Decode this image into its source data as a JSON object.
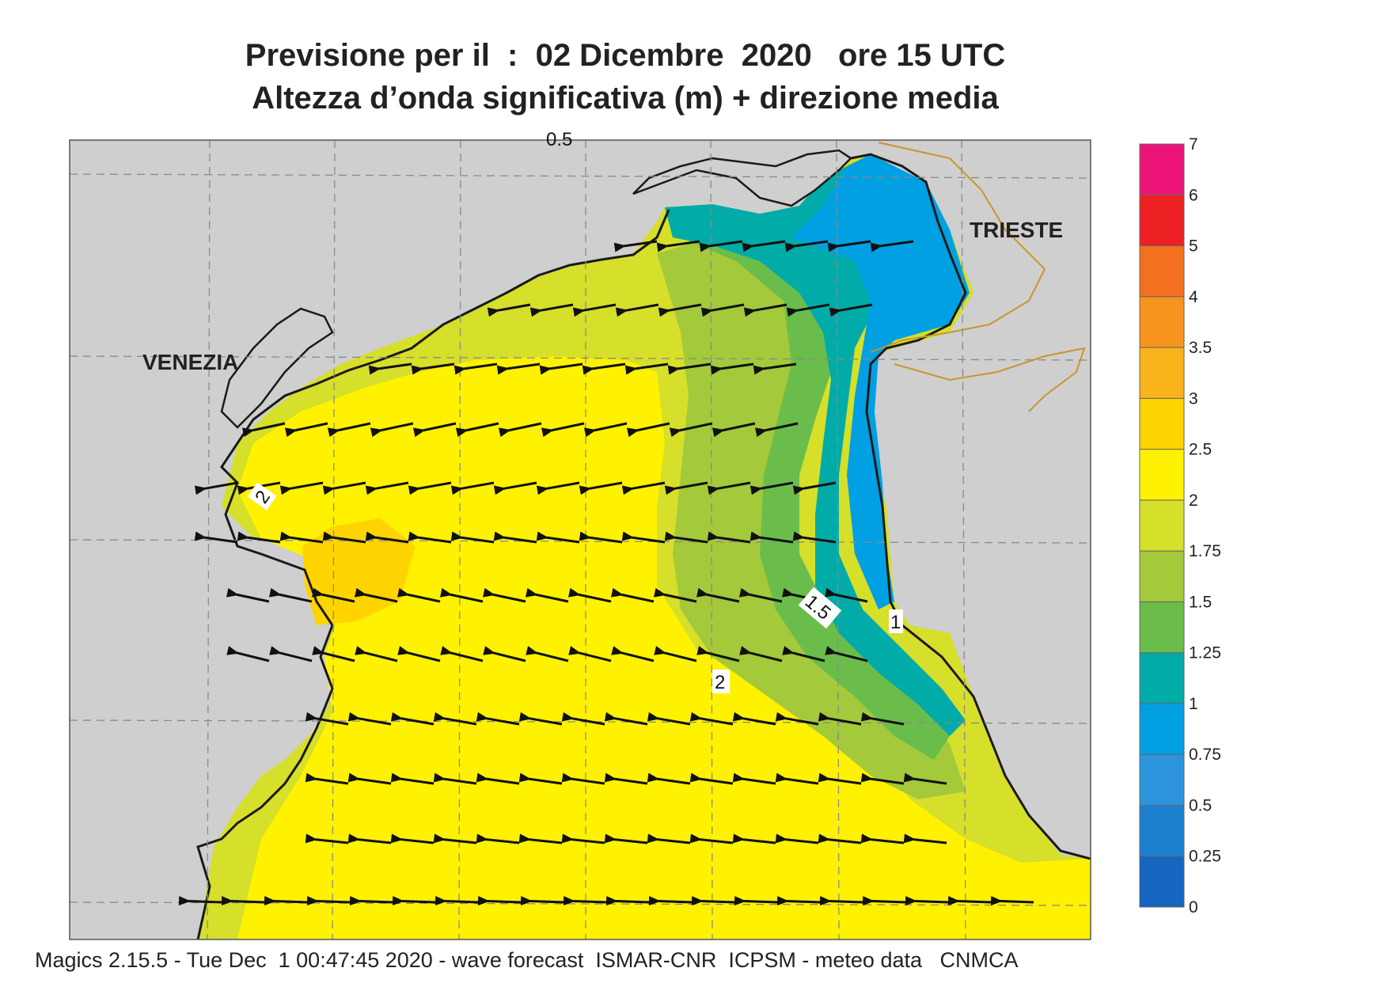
{
  "title_line1": "Previsione per il  :  02 Dicembre  2020   ore 15 UTC",
  "title_line2": "Altezza d’onda significativa (m) + direzione media",
  "top_label": "0.5",
  "footer": "Magics 2.15.5 - Tue Dec  1 00:47:45 2020 - wave forecast  ISMAR-CNR  ICPSM - meteo data   CNMCA",
  "places": {
    "venezia": "VENEZIA",
    "trieste": "TRIESTE"
  },
  "contour_labels": [
    "2",
    "1.5",
    "2",
    "1"
  ],
  "legend": {
    "levels": [
      "0",
      "0.25",
      "0.5",
      "0.75",
      "1",
      "1.25",
      "1.5",
      "1.75",
      "2",
      "2.5",
      "3",
      "3.5",
      "4",
      "5",
      "6",
      "7"
    ],
    "colors": [
      "#1466c0",
      "#1d7fd0",
      "#2b94dc",
      "#00a0e2",
      "#00aba8",
      "#6abd4b",
      "#a4c93a",
      "#d6df2a",
      "#fff200",
      "#ffd400",
      "#fbb31b",
      "#f7941d",
      "#f37021",
      "#ed2024",
      "#ec1577"
    ]
  },
  "colors": {
    "land": "#cfcfcf",
    "sea_high": "#fff200",
    "coast": "#1a1a1a",
    "border": "#c8962f",
    "arrows": "#111111"
  }
}
